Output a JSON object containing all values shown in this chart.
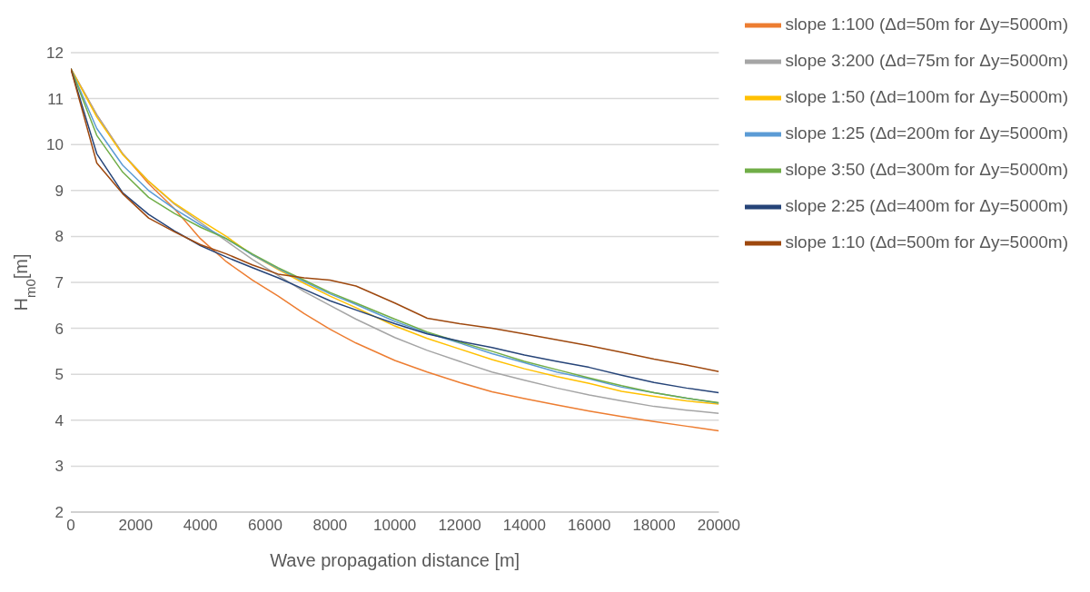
{
  "chart_data": {
    "type": "line",
    "xlabel": "Wave propagation distance [m]",
    "ylabel": "H$_{m0}$[m]",
    "x": [
      0,
      800,
      1600,
      2400,
      3200,
      4000,
      4800,
      5600,
      6400,
      7200,
      8000,
      8800,
      10000,
      11000,
      12000,
      13000,
      14000,
      15000,
      16000,
      17000,
      18000,
      19000,
      20000
    ],
    "series": [
      {
        "name": "slope 1:100 (Δd=50m for Δy=5000m)",
        "color": "#ed7d31",
        "values": [
          11.65,
          10.65,
          9.8,
          9.15,
          8.6,
          7.95,
          7.45,
          7.05,
          6.7,
          6.32,
          5.98,
          5.68,
          5.3,
          5.05,
          4.82,
          4.62,
          4.47,
          4.33,
          4.2,
          4.08,
          3.97,
          3.87,
          3.77
        ]
      },
      {
        "name": "slope 3:200 (Δd=75m for Δy=5000m)",
        "color": "#a5a5a5",
        "values": [
          11.65,
          10.65,
          9.8,
          9.2,
          8.7,
          8.3,
          7.9,
          7.5,
          7.15,
          6.8,
          6.5,
          6.2,
          5.8,
          5.52,
          5.28,
          5.05,
          4.87,
          4.7,
          4.55,
          4.42,
          4.3,
          4.22,
          4.15
        ]
      },
      {
        "name": "slope 1:50 (Δd=100m for Δy=5000m)",
        "color": "#ffc000",
        "values": [
          11.65,
          10.6,
          9.78,
          9.2,
          8.72,
          8.35,
          8.0,
          7.6,
          7.28,
          6.98,
          6.7,
          6.45,
          6.05,
          5.78,
          5.55,
          5.32,
          5.12,
          4.95,
          4.8,
          4.63,
          4.52,
          4.42,
          4.35
        ]
      },
      {
        "name": "slope 1:25 (Δd=200m for Δy=5000m)",
        "color": "#5b9bd5",
        "values": [
          11.65,
          10.35,
          9.55,
          9.0,
          8.6,
          8.25,
          7.95,
          7.6,
          7.3,
          7.02,
          6.75,
          6.52,
          6.15,
          5.9,
          5.68,
          5.45,
          5.25,
          5.05,
          4.9,
          4.72,
          4.6,
          4.48,
          4.37
        ]
      },
      {
        "name": "slope 3:50 (Δd=300m for Δy=5000m)",
        "color": "#70ad47",
        "values": [
          11.65,
          10.2,
          9.4,
          8.85,
          8.5,
          8.2,
          7.95,
          7.62,
          7.32,
          7.05,
          6.78,
          6.55,
          6.2,
          5.92,
          5.7,
          5.5,
          5.28,
          5.1,
          4.92,
          4.75,
          4.6,
          4.48,
          4.38
        ]
      },
      {
        "name": "slope 2:25 (Δd=400m for Δy=5000m)",
        "color": "#264478",
        "values": [
          11.65,
          9.8,
          8.95,
          8.48,
          8.12,
          7.8,
          7.55,
          7.32,
          7.1,
          6.85,
          6.6,
          6.4,
          6.1,
          5.88,
          5.72,
          5.58,
          5.42,
          5.28,
          5.15,
          4.98,
          4.82,
          4.7,
          4.6
        ]
      },
      {
        "name": "slope 1:10 (Δd=500m for Δy=5000m)",
        "color": "#9e480e",
        "values": [
          11.65,
          9.6,
          8.93,
          8.4,
          8.1,
          7.82,
          7.62,
          7.38,
          7.18,
          7.1,
          7.05,
          6.92,
          6.55,
          6.22,
          6.1,
          6.0,
          5.88,
          5.75,
          5.62,
          5.48,
          5.33,
          5.2,
          5.06
        ]
      }
    ],
    "xlim": [
      0,
      20000
    ],
    "xticks": [
      0,
      2000,
      4000,
      6000,
      8000,
      10000,
      12000,
      14000,
      16000,
      18000,
      20000
    ],
    "ylim": [
      2,
      12
    ],
    "yticks": [
      2,
      3,
      4,
      5,
      6,
      7,
      8,
      9,
      10,
      11,
      12
    ],
    "grid": "y",
    "legend": "top right",
    "marker": "none",
    "line_style": "solid"
  }
}
